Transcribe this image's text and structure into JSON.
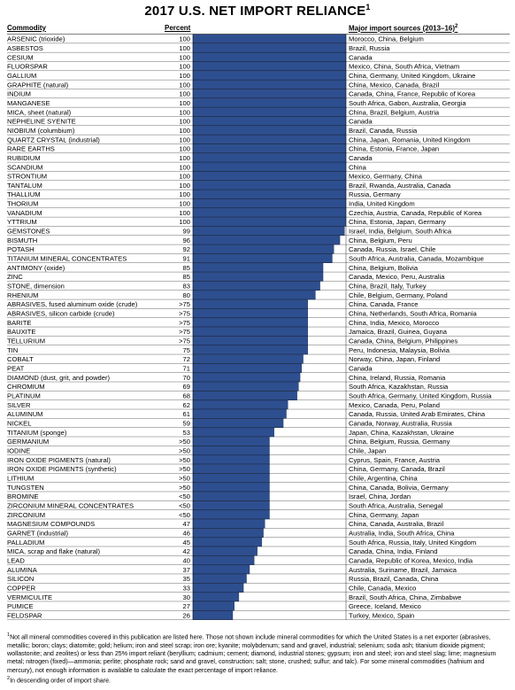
{
  "title": "2017 U.S. NET IMPORT RELIANCE",
  "title_footnote_mark": "1",
  "headers": {
    "commodity": "Commodity",
    "percent": "Percent",
    "sources": "Major import sources (2013–16)",
    "sources_footnote_mark": "2"
  },
  "colors": {
    "bar": "#2e4f8f",
    "bar_stroke": "#1c2f57",
    "background": "#ffffff"
  },
  "footnotes": {
    "note1_mark": "1",
    "note1": "Not all mineral commodities covered in this publication are listed here. Those not shown include mineral commodities for which the United States is a net exporter (abrasives, metallic; boron; clays; diatomite; gold; helium; iron and steel scrap; iron ore; kyanite; molybdenum; sand and gravel, industrial; selenium; soda ash; titanium dioxide pigment; wollastonite; and zeolites) or less than 25% import reliant (beryllium; cadmium; cement; diamond, industrial stones; gypsum; iron and steel; iron and steel slag; lime; magnesium metal; nitrogen (fixed)—ammonia; perlite; phosphate rock; sand and gravel, construction; salt; stone, crushed; sulfur; and talc). For some mineral commodities (hafnium and mercury), not enough information is available to calculate the exact percentage of import reliance.",
    "note2_mark": "2",
    "note2": "In descending order of import share."
  },
  "chart_data": {
    "type": "bar",
    "orientation": "horizontal",
    "xlim": [
      0,
      100
    ],
    "categories": [
      "ARSENIC (trioxide)",
      "ASBESTOS",
      "CESIUM",
      "FLUORSPAR",
      "GALLIUM",
      "GRAPHITE (natural)",
      "INDIUM",
      "MANGANESE",
      "MICA, sheet (natural)",
      "NEPHELINE SYENITE",
      "NIOBIUM (columbium)",
      "QUARTZ CRYSTAL (industrial)",
      "RARE EARTHS",
      "RUBIDIUM",
      "SCANDIUM",
      "STRONTIUM",
      "TANTALUM",
      "THALLIUM",
      "THORIUM",
      "VANADIUM",
      "YTTRIUM",
      "GEMSTONES",
      "BISMUTH",
      "POTASH",
      "TITANIUM MINERAL CONCENTRATES",
      "ANTIMONY (oxide)",
      "ZINC",
      "STONE, dimension",
      "RHENIUM",
      "ABRASIVES, fused aluminum oxide (crude)",
      "ABRASIVES, silicon carbide (crude)",
      "BARITE",
      "BAUXITE",
      "TELLURIUM",
      "TIN",
      "COBALT",
      "PEAT",
      "DIAMOND (dust, grit, and powder)",
      "CHROMIUM",
      "PLATINUM",
      "SILVER",
      "ALUMINUM",
      "NICKEL",
      "TITANIUM (sponge)",
      "GERMANIUM",
      "IODINE",
      "IRON OXIDE PIGMENTS (natural)",
      "IRON OXIDE PIGMENTS (synthetic)",
      "LITHIUM",
      "TUNGSTEN",
      "BROMINE",
      "ZIRCONIUM MINERAL CONCENTRATES",
      "ZIRCONIUM",
      "MAGNESIUM COMPOUNDS",
      "GARNET (industrial)",
      "PALLADIUM",
      "MICA, scrap and flake (natural)",
      "LEAD",
      "ALUMINA",
      "SILICON",
      "COPPER",
      "VERMICULITE",
      "PUMICE",
      "FELDSPAR"
    ],
    "percent_labels": [
      "100",
      "100",
      "100",
      "100",
      "100",
      "100",
      "100",
      "100",
      "100",
      "100",
      "100",
      "100",
      "100",
      "100",
      "100",
      "100",
      "100",
      "100",
      "100",
      "100",
      "100",
      "99",
      "96",
      "92",
      "91",
      "85",
      "85",
      "83",
      "80",
      ">75",
      ">75",
      ">75",
      ">75",
      ">75",
      "75",
      "72",
      "71",
      "70",
      "69",
      "68",
      "62",
      "61",
      "59",
      "53",
      ">50",
      ">50",
      ">50",
      ">50",
      ">50",
      ">50",
      "<50",
      "<50",
      "<50",
      "47",
      "46",
      "45",
      "42",
      "40",
      "37",
      "35",
      "33",
      "30",
      "27",
      "26"
    ],
    "values": [
      100,
      100,
      100,
      100,
      100,
      100,
      100,
      100,
      100,
      100,
      100,
      100,
      100,
      100,
      100,
      100,
      100,
      100,
      100,
      100,
      100,
      99,
      96,
      92,
      91,
      85,
      85,
      83,
      80,
      75,
      75,
      75,
      75,
      75,
      75,
      72,
      71,
      70,
      69,
      68,
      62,
      61,
      59,
      53,
      50,
      50,
      50,
      50,
      50,
      50,
      50,
      50,
      50,
      47,
      46,
      45,
      42,
      40,
      37,
      35,
      33,
      30,
      27,
      26
    ],
    "sources": [
      "Morocco, China, Belgium",
      "Brazil, Russia",
      "Canada",
      "Mexico, China, South Africa, Vietnam",
      "China, Germany, United Kingdom, Ukraine",
      "China, Mexico, Canada, Brazil",
      "Canada, China, France, Republic of Korea",
      "South Africa, Gabon, Australia, Georgia",
      "China, Brazil, Belgium, Austria",
      "Canada",
      "Brazil, Canada, Russia",
      "China, Japan, Romania, United Kingdom",
      "China, Estonia, France, Japan",
      "Canada",
      "China",
      "Mexico, Germany, China",
      "Brazil, Rwanda, Australia, Canada",
      "Russia, Germany",
      "India, United Kingdom",
      "Czechia, Austria, Canada, Republic of Korea",
      "China, Estonia, Japan, Germany",
      "Israel, India, Belgium, South Africa",
      "China, Belgium, Peru",
      "Canada, Russia, Israel, Chile",
      "South Africa, Australia, Canada, Mozambique",
      "China, Belgium, Bolivia",
      "Canada, Mexico, Peru, Australia",
      "China, Brazil, Italy, Turkey",
      "Chile, Belgium, Germany, Poland",
      "China, Canada, France",
      "China, Netherlands, South Africa, Romania",
      "China, India, Mexico, Morocco",
      "Jamaica, Brazil, Guinea, Guyana",
      "Canada, China, Belgium, Philippines",
      "Peru, Indonesia, Malaysia, Bolivia",
      "Norway, China, Japan, Finland",
      "Canada",
      "China, Ireland, Russia, Romania",
      "South Africa, Kazakhstan, Russia",
      "South Africa, Germany, United Kingdom, Russia",
      "Mexico, Canada, Peru, Poland",
      "Canada, Russia, United Arab Emirates, China",
      "Canada, Norway, Australia, Russia",
      "Japan, China, Kazakhstan, Ukraine",
      "China, Belgium, Russia, Germany",
      "Chile, Japan",
      "Cyprus, Spain, France, Austria",
      "China, Germany, Canada, Brazil",
      "Chile, Argentina, China",
      "China, Canada, Bolivia, Germany",
      "Israel, China, Jordan",
      "South Africa, Australia, Senegal",
      "China, Germany, Japan",
      "China, Canada, Australia, Brazil",
      "Australia, India, South Africa, China",
      "South Africa, Russia, Italy, United Kingdom",
      "Canada, China, India, Finland",
      "Canada, Republic of Korea, Mexico, India",
      "Australia, Suriname, Brazil, Jamaica",
      "Russia, Brazil, Canada, China",
      "Chile, Canada, Mexico",
      "Brazil, South Africa, China, Zimbabwe",
      "Greece, Iceland, Mexico",
      "Turkey, Mexico, Spain"
    ]
  }
}
